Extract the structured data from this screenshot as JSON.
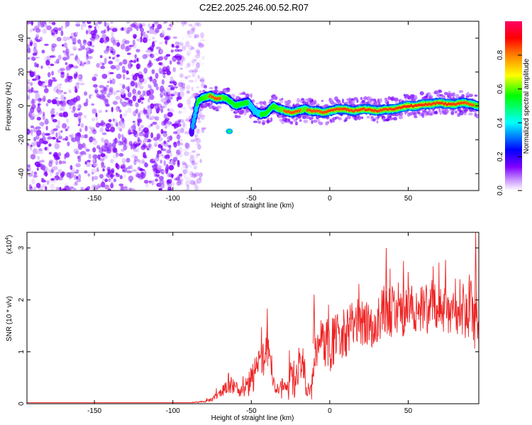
{
  "title": "C2E2.2025.246.00.52.R07",
  "chart_data": [
    {
      "type": "heatmap",
      "title": "C2E2.2025.246.00.52.R07",
      "xlabel": "Height of straight line (km)",
      "ylabel": "Frequency (Hz)",
      "xlim": [
        -193,
        95
      ],
      "ylim": [
        -50,
        50
      ],
      "xticks": [
        -150,
        -100,
        -50,
        0,
        50
      ],
      "xtick_labels": [
        "-150",
        "-100",
        "-50",
        "0",
        "50"
      ],
      "yticks": [
        -40,
        -20,
        0,
        20,
        40
      ],
      "ytick_labels": [
        "-40",
        "-20",
        "0",
        "20",
        "40"
      ],
      "colorbar": {
        "label": "Normalized spectral amplitude",
        "range": [
          0,
          1
        ],
        "ticks": [
          0.0,
          0.2,
          0.4,
          0.6,
          0.8
        ],
        "tick_labels": [
          "0.0",
          "0.2",
          "0.4",
          "0.6",
          "0.8"
        ],
        "colors": [
          "#ffffff",
          "#cc99ff",
          "#7f00ff",
          "#0000ff",
          "#00ffff",
          "#00ff00",
          "#ffff00",
          "#ff8000",
          "#ff0000",
          "#ff0066"
        ]
      },
      "noise_region": {
        "x_range": [
          -193,
          -88
        ],
        "freq_range": [
          -50,
          50
        ],
        "color": "#8000ff"
      },
      "ridge": {
        "x": [
          -88,
          -84,
          -80,
          -76,
          -72,
          -68,
          -64,
          -60,
          -56,
          -52,
          -48,
          -44,
          -40,
          -36,
          -32,
          -28,
          -24,
          -20,
          -16,
          -12,
          -8,
          -4,
          0,
          5,
          10,
          15,
          20,
          25,
          30,
          35,
          40,
          45,
          50,
          55,
          60,
          65,
          70,
          75,
          80,
          85,
          90,
          95
        ],
        "freq": [
          -15,
          3,
          5,
          6,
          4,
          5,
          3,
          0,
          1,
          2,
          -3,
          -5,
          -4,
          0,
          -2,
          -3,
          -4,
          -3,
          -2,
          -3,
          -3,
          -4,
          -3,
          -2,
          -2,
          -3,
          -2,
          -2,
          -3,
          -2,
          -2,
          -1,
          0,
          0,
          1,
          1,
          2,
          1,
          1,
          2,
          1,
          0
        ],
        "amplitude": [
          0.3,
          0.55,
          0.65,
          0.75,
          0.8,
          0.7,
          0.55,
          0.5,
          0.5,
          0.5,
          0.45,
          0.5,
          0.55,
          0.6,
          0.7,
          0.75,
          0.8,
          0.75,
          0.7,
          0.8,
          0.75,
          0.8,
          0.85,
          0.8,
          0.85,
          0.8,
          0.85,
          0.85,
          0.85,
          0.8,
          0.85,
          0.9,
          0.95,
          0.95,
          0.9,
          0.85,
          0.85,
          0.9,
          0.85,
          0.8,
          0.75,
          0.7
        ]
      }
    },
    {
      "type": "line",
      "xlabel": "Height of straight line (km)",
      "ylabel": "SNR (10 * v/v)",
      "y_multiplier": "(x10",
      "y_multiplier_exp": "4",
      "y_multiplier_close": ")",
      "xlim": [
        -193,
        95
      ],
      "ylim": [
        0,
        3.3
      ],
      "xticks": [
        -150,
        -100,
        -50,
        0,
        50
      ],
      "xtick_labels": [
        "-150",
        "-100",
        "-50",
        "0",
        "50"
      ],
      "yticks": [
        0,
        1,
        2,
        3
      ],
      "ytick_labels": [
        "0",
        "1",
        "2",
        "3"
      ],
      "line_color": "#ee2222",
      "series": {
        "x": [
          -193,
          -160,
          -120,
          -90,
          -80,
          -75,
          -70,
          -65,
          -60,
          -55,
          -50,
          -47,
          -45,
          -43,
          -40,
          -37,
          -35,
          -32,
          -30,
          -27,
          -25,
          -22,
          -20,
          -17,
          -15,
          -12,
          -10,
          -5,
          0,
          5,
          10,
          15,
          20,
          25,
          30,
          35,
          40,
          45,
          50,
          55,
          60,
          65,
          70,
          75,
          80,
          85,
          88,
          90,
          92,
          95
        ],
        "y": [
          0.02,
          0.02,
          0.02,
          0.02,
          0.04,
          0.08,
          0.2,
          0.35,
          0.3,
          0.2,
          0.45,
          0.6,
          1.0,
          0.8,
          1.1,
          0.7,
          0.3,
          0.2,
          0.35,
          0.2,
          0.5,
          0.3,
          0.8,
          0.6,
          0.4,
          0.2,
          1.0,
          1.2,
          1.1,
          1.3,
          1.4,
          1.5,
          1.6,
          1.5,
          1.6,
          1.7,
          1.8,
          1.7,
          1.8,
          1.85,
          1.8,
          1.9,
          1.85,
          1.8,
          1.8,
          1.9,
          1.6,
          2.2,
          1.5,
          1.3
        ],
        "noise_amplitude": [
          0.0,
          0.0,
          0.0,
          0.0,
          0.02,
          0.04,
          0.1,
          0.15,
          0.15,
          0.15,
          0.3,
          0.35,
          0.35,
          0.35,
          0.35,
          0.3,
          0.15,
          0.15,
          0.25,
          0.2,
          0.35,
          0.25,
          0.45,
          0.4,
          0.35,
          0.25,
          0.5,
          0.5,
          0.5,
          0.5,
          0.5,
          0.45,
          0.5,
          0.45,
          0.5,
          0.6,
          0.5,
          0.5,
          0.45,
          0.45,
          0.5,
          0.5,
          0.45,
          0.45,
          0.5,
          0.6,
          0.5,
          0.7,
          0.6,
          0.5
        ],
        "peaks": [
          {
            "x": -40,
            "y": 1.45
          },
          {
            "x": 36,
            "y": 3.0
          },
          {
            "x": 93,
            "y": 3.3
          },
          {
            "x": 47,
            "y": 2.75
          },
          {
            "x": -10,
            "y": 2.1
          }
        ]
      }
    }
  ]
}
